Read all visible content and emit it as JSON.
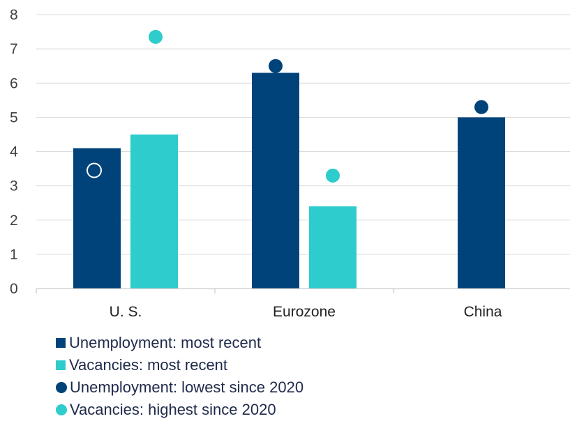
{
  "chart_data": {
    "type": "bar",
    "categories": [
      "U. S.",
      "Eurozone",
      "China"
    ],
    "ylim": [
      0,
      8
    ],
    "yticks": [
      0,
      1,
      2,
      3,
      4,
      5,
      6,
      7,
      8
    ],
    "grid": true,
    "legend_position": "bottom-left",
    "series": [
      {
        "name": "Unemployment: most recent",
        "kind": "bar",
        "color": "#00437a",
        "values": [
          4.1,
          6.3,
          5.0
        ]
      },
      {
        "name": "Vacancies: most recent",
        "kind": "bar",
        "color": "#2ecccc",
        "values": [
          4.5,
          2.4,
          null
        ]
      },
      {
        "name": "Unemployment: lowest since 2020",
        "kind": "point",
        "color": "#00437a",
        "values": [
          3.45,
          6.5,
          5.3
        ]
      },
      {
        "name": "Vacancies: highest since 2020",
        "kind": "point",
        "color": "#2ecccc",
        "values": [
          7.35,
          3.3,
          null
        ]
      }
    ]
  }
}
